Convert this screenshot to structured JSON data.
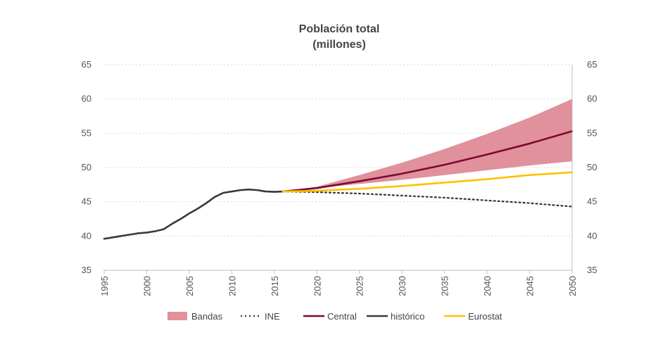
{
  "chart_data": {
    "type": "line",
    "title": "Población total",
    "subtitle": "(millones)",
    "xlabel": "",
    "ylabel": "",
    "xlim": [
      1995,
      2050
    ],
    "ylim": [
      35,
      65
    ],
    "x_ticks": [
      "1995",
      "2000",
      "2005",
      "2010",
      "2015",
      "2020",
      "2025",
      "2030",
      "2035",
      "2040",
      "2045",
      "2050"
    ],
    "y_ticks": [
      "35",
      "40",
      "45",
      "50",
      "55",
      "60",
      "65"
    ],
    "grid": true,
    "legend_position": "bottom",
    "series": [
      {
        "name": "Bandas",
        "kind": "band",
        "color": "#e0919c",
        "x": [
          2016,
          2020,
          2025,
          2030,
          2035,
          2040,
          2045,
          2050
        ],
        "lower": [
          46.5,
          47.0,
          47.6,
          48.2,
          48.9,
          49.6,
          50.3,
          50.9
        ],
        "upper": [
          46.5,
          47.2,
          48.9,
          50.7,
          52.7,
          54.9,
          57.3,
          60.0
        ]
      },
      {
        "name": "INE",
        "kind": "dotted",
        "color": "#333333",
        "x": [
          2016,
          2020,
          2025,
          2030,
          2035,
          2040,
          2045,
          2050
        ],
        "y": [
          46.5,
          46.4,
          46.2,
          45.9,
          45.6,
          45.2,
          44.8,
          44.3
        ]
      },
      {
        "name": "Central",
        "kind": "line",
        "color": "#7b0a2e",
        "x": [
          2016,
          2020,
          2025,
          2030,
          2035,
          2040,
          2045,
          2050
        ],
        "y": [
          46.5,
          47.0,
          48.0,
          49.1,
          50.4,
          51.9,
          53.5,
          55.3
        ]
      },
      {
        "name": "histórico",
        "kind": "line",
        "color": "#3a3a3a",
        "x": [
          1995,
          1996,
          1997,
          1998,
          1999,
          2000,
          2001,
          2002,
          2003,
          2004,
          2005,
          2006,
          2007,
          2008,
          2009,
          2010,
          2011,
          2012,
          2013,
          2014,
          2015,
          2016
        ],
        "y": [
          39.6,
          39.8,
          40.0,
          40.2,
          40.4,
          40.5,
          40.7,
          41.0,
          41.8,
          42.5,
          43.3,
          44.0,
          44.8,
          45.7,
          46.3,
          46.5,
          46.7,
          46.8,
          46.7,
          46.5,
          46.45,
          46.5
        ]
      },
      {
        "name": "Eurostat",
        "kind": "line",
        "color": "#ffc000",
        "x": [
          2016,
          2020,
          2025,
          2030,
          2035,
          2040,
          2045,
          2050
        ],
        "y": [
          46.5,
          46.6,
          46.9,
          47.3,
          47.8,
          48.3,
          48.9,
          49.3
        ]
      }
    ]
  }
}
